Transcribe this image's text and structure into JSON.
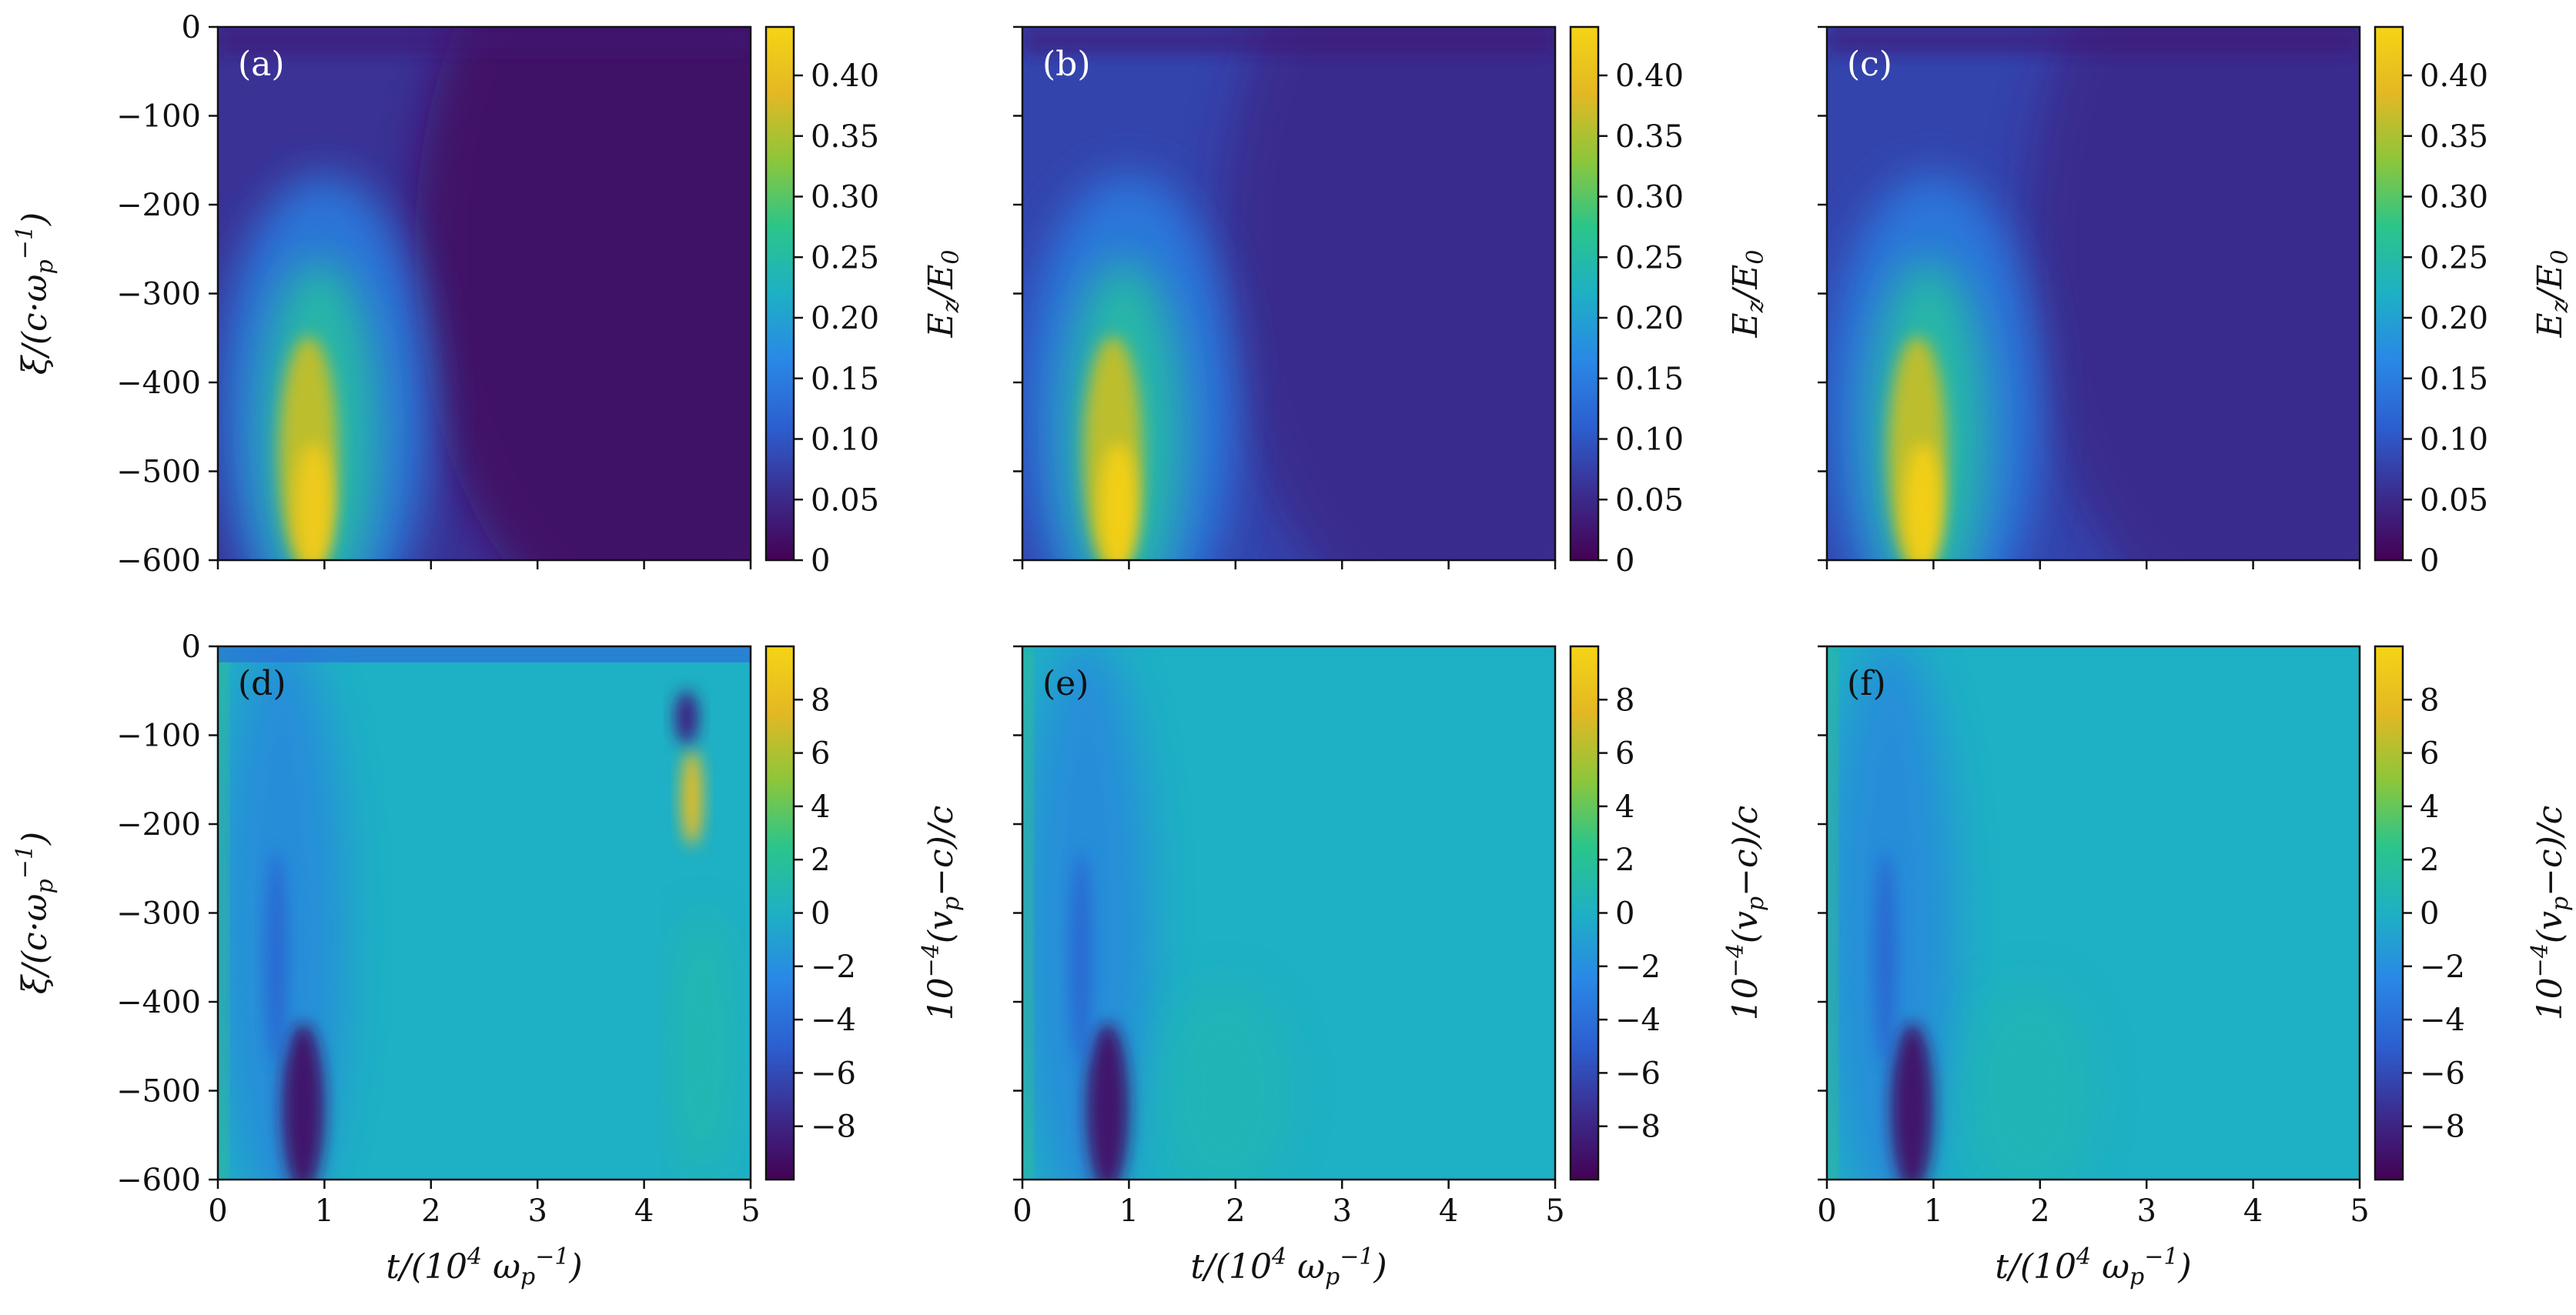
{
  "chart_data": {
    "type": "heatmap",
    "layout": "2 rows x 3 columns",
    "x_axis": {
      "label_base": "t/(10",
      "label_sup1": "4",
      "label_mid": " ω",
      "label_sub": "p",
      "label_sup2": "−1",
      "label_end": ")",
      "range": [
        0,
        5
      ],
      "ticks": [
        0,
        1,
        2,
        3,
        4,
        5
      ]
    },
    "y_axis": {
      "label_base": "ξ/(c·ω",
      "label_sub": "p",
      "label_sup": "−1",
      "label_end": ")",
      "range": [
        -600,
        0
      ],
      "ticks": [
        0,
        -100,
        -200,
        -300,
        -400,
        -500,
        -600
      ],
      "tick_labels": [
        "0",
        "−100",
        "−200",
        "−300",
        "−400",
        "−500",
        "−600"
      ]
    },
    "colorbars": {
      "top": {
        "label_main": "E",
        "label_sub": "z",
        "label_rest": "/E",
        "label_sub2": "0",
        "range": [
          0,
          0.44
        ],
        "ticks": [
          0,
          0.05,
          0.1,
          0.15,
          0.2,
          0.25,
          0.3,
          0.35,
          0.4
        ],
        "tick_labels": [
          "0",
          "0.05",
          "0.10",
          "0.15",
          "0.20",
          "0.25",
          "0.30",
          "0.35",
          "0.40"
        ]
      },
      "bottom": {
        "label_pre": "10",
        "label_sup": "−4",
        "label_mid": "(v",
        "label_sub": "p",
        "label_end": "−c)/c",
        "range": [
          -10,
          10
        ],
        "ticks": [
          8,
          6,
          4,
          2,
          0,
          -2,
          -4,
          -6,
          -8
        ],
        "tick_labels": [
          "8",
          "6",
          "4",
          "2",
          "0",
          "−2",
          "−4",
          "−6",
          "−8"
        ]
      }
    },
    "colormap": [
      "#440154",
      "#3b2d8f",
      "#2c5fd0",
      "#2a88e6",
      "#1eb0c4",
      "#2bc58a",
      "#8dc63a",
      "#e3b824",
      "#f5d415"
    ],
    "panels": [
      {
        "label": "(a)",
        "row": 0,
        "col": 0,
        "quantity": "Ez/E0",
        "background_value": 0.06,
        "hotspot_peak": 0.42,
        "hotspot_t": 0.85
      },
      {
        "label": "(b)",
        "row": 0,
        "col": 1,
        "quantity": "Ez/E0",
        "background_value": 0.08,
        "hotspot_peak": 0.43,
        "hotspot_t": 0.85
      },
      {
        "label": "(c)",
        "row": 0,
        "col": 2,
        "quantity": "Ez/E0",
        "background_value": 0.08,
        "hotspot_peak": 0.43,
        "hotspot_t": 0.85
      },
      {
        "label": "(d)",
        "row": 1,
        "col": 0,
        "quantity": "1e-4 (vp-c)/c",
        "background_value": 0,
        "trough_min": -9,
        "trough_t": 0.8,
        "late_peak": 8,
        "late_peak_t": 4.45
      },
      {
        "label": "(e)",
        "row": 1,
        "col": 1,
        "quantity": "1e-4 (vp-c)/c",
        "background_value": 0,
        "trough_min": -9,
        "trough_t": 0.8
      },
      {
        "label": "(f)",
        "row": 1,
        "col": 2,
        "quantity": "1e-4 (vp-c)/c",
        "background_value": 0,
        "trough_min": -9,
        "trough_t": 0.8
      }
    ]
  }
}
